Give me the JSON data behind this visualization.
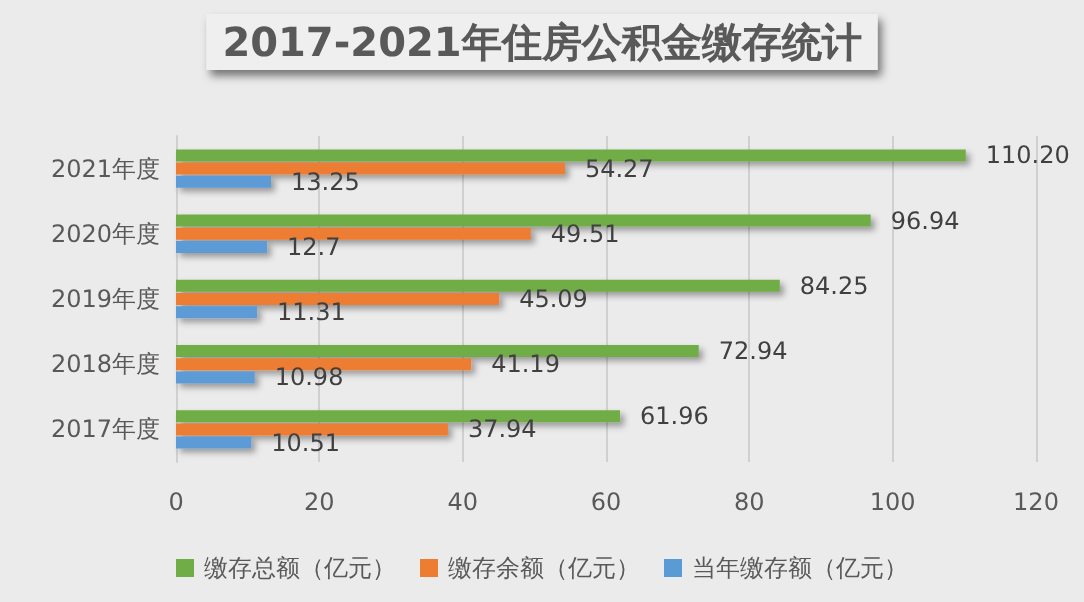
{
  "chart_data": {
    "type": "bar",
    "orientation": "horizontal",
    "title": "2017-2021年住房公积金缴存统计",
    "categories": [
      "2021年度",
      "2020年度",
      "2019年度",
      "2018年度",
      "2017年度"
    ],
    "series": [
      {
        "name": "缴存总额（亿元）",
        "color": "#70ad47",
        "values": [
          110.2,
          96.94,
          84.25,
          72.94,
          61.96
        ],
        "value_labels": [
          "110.20",
          "96.94",
          "84.25",
          "72.94",
          "61.96"
        ]
      },
      {
        "name": "缴存余额（亿元）",
        "color": "#ed7d31",
        "values": [
          54.27,
          49.51,
          45.09,
          41.19,
          37.94
        ],
        "value_labels": [
          "54.27",
          "49.51",
          "45.09",
          "41.19",
          "37.94"
        ]
      },
      {
        "name": "当年缴存额（亿元）",
        "color": "#5b9bd5",
        "values": [
          13.25,
          12.7,
          11.31,
          10.98,
          10.51
        ],
        "value_labels": [
          "13.25",
          "12.7",
          "11.31",
          "10.98",
          "10.51"
        ]
      }
    ],
    "xlim": [
      0,
      120
    ],
    "xticks": [
      0,
      20,
      40,
      60,
      80,
      100,
      120
    ],
    "grid": "x",
    "legend": "bottom"
  }
}
